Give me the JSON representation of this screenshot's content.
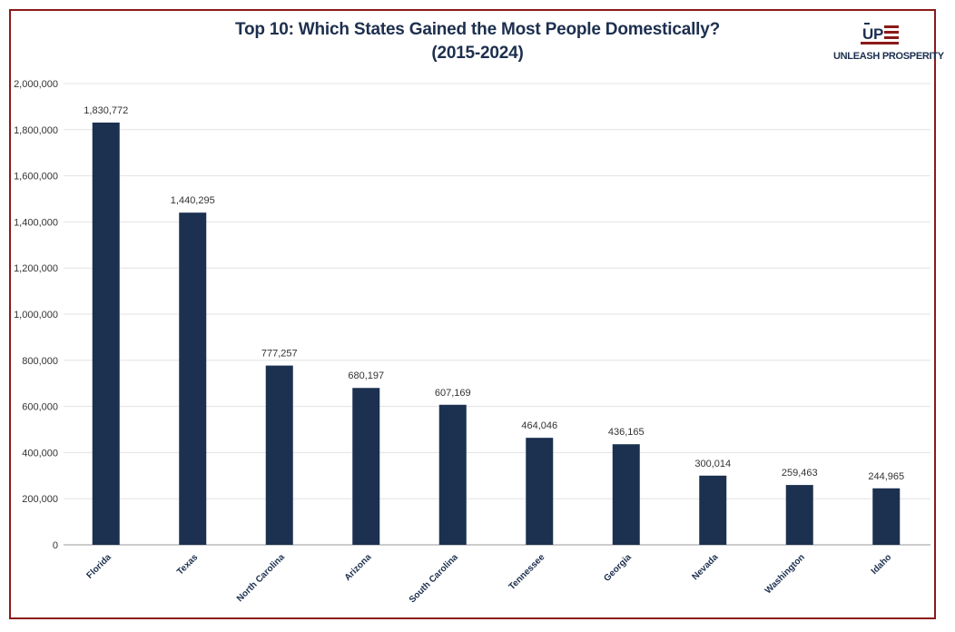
{
  "chart_data": {
    "type": "bar",
    "title": "Top 10: Which States Gained the Most People Domestically?",
    "subtitle": "(2015-2024)",
    "categories": [
      "Florida",
      "Texas",
      "North Carolina",
      "Arizona",
      "South Carolina",
      "Tennessee",
      "Georgia",
      "Nevada",
      "Washington",
      "Idaho"
    ],
    "values": [
      1830772,
      1440295,
      777257,
      680197,
      607169,
      464046,
      436165,
      300014,
      259463,
      244965
    ],
    "value_labels": [
      "1,830,772",
      "1,440,295",
      "777,257",
      "680,197",
      "607,169",
      "464,046",
      "436,165",
      "300,014",
      "259,463",
      "244,965"
    ],
    "y_ticks": [
      "0",
      "200,000",
      "400,000",
      "600,000",
      "800,000",
      "1,000,000",
      "1,200,000",
      "1,400,000",
      "1,600,000",
      "1,800,000",
      "2,000,000"
    ],
    "ylim": [
      0,
      2000000
    ],
    "xlabel": "",
    "ylabel": "",
    "grid": true,
    "bar_color": "#1c3150"
  },
  "logo": {
    "text": "UNLEASH PROSPERITY",
    "mark": "UP",
    "colors": {
      "navy": "#1c2f4e",
      "red": "#8b1a1a"
    }
  },
  "frame_color": "#8b1a1a"
}
